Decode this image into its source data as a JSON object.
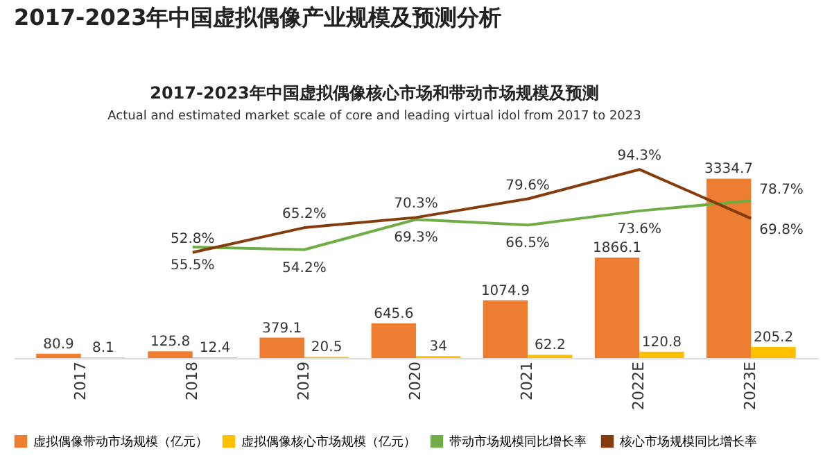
{
  "chart_data": {
    "type": "bar",
    "title": "2017-2023年中国虚拟偶像产业规模及预测分析",
    "subtitle": "2017-2023年中国虚拟偶像核心市场和带动市场规模及预测",
    "annotations": [
      "Actual and estimated market scale of core and leading virtual idol from 2017 to 2023"
    ],
    "categories": [
      "2017",
      "2018",
      "2019",
      "2020",
      "2021",
      "2022E",
      "2023E"
    ],
    "series": [
      {
        "name": "虚拟偶像带动市场规模（亿元）",
        "color": "#ed7d31",
        "values": [
          80.9,
          125.8,
          379.1,
          645.6,
          1074.9,
          1866.1,
          3334.7
        ],
        "value_labels": [
          "80.9",
          "125.8",
          "379.1",
          "645.6",
          "1074.9",
          "1866.1",
          "3334.7"
        ]
      },
      {
        "name": "虚拟偶像核心市场规模（亿元）",
        "color": "#ffc000",
        "values": [
          8.1,
          12.4,
          20.5,
          34,
          62.2,
          120.8,
          205.2
        ],
        "value_labels": [
          "8.1",
          "12.4",
          "20.5",
          "34",
          "62.2",
          "120.8",
          "205.2"
        ]
      },
      {
        "name": "带动市场规模同比增长率",
        "type": "line",
        "axis": "y2",
        "color": "#70ad47",
        "values": [
          null,
          55.5,
          54.2,
          69.3,
          66.5,
          73.6,
          78.7
        ],
        "value_labels": [
          null,
          "55.5%",
          "54.2%",
          "69.3%",
          "66.5%",
          "73.6%",
          "78.7%"
        ]
      },
      {
        "name": "核心市场规模同比增长率",
        "type": "line",
        "axis": "y2",
        "color": "#843c0c",
        "values": [
          null,
          52.8,
          65.2,
          70.3,
          79.6,
          94.3,
          69.8
        ],
        "value_labels": [
          null,
          "52.8%",
          "65.2%",
          "70.3%",
          "79.6%",
          "94.3%",
          "69.8%"
        ]
      }
    ],
    "tick_labels": "x",
    "grid": false,
    "legend": "bottom",
    "marker": "none",
    "line_style": "solid"
  }
}
